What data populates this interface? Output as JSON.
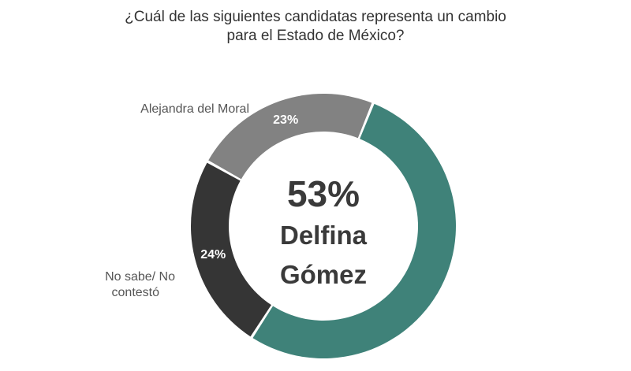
{
  "chart_data": {
    "type": "pie",
    "variant": "donut",
    "title_lines": [
      "¿Cuál de las siguientes candidatas representa un cambio",
      "para el Estado de México?"
    ],
    "categories": [
      "Delfina Gómez",
      "No sabe/ No contestó",
      "Alejandra del Moral"
    ],
    "values": [
      53,
      24,
      23
    ],
    "value_labels": [
      "53%",
      "24%",
      "23%"
    ],
    "colors": [
      "#3f8279",
      "#353535",
      "#828282"
    ],
    "outside_labels": {
      "alejandra": "Alejandra del Moral",
      "nosabe_line1": "No sabe/ No",
      "nosabe_line2": "contestó"
    },
    "center": {
      "value": "53%",
      "name_line1": "Delfina",
      "name_line2": "Gómez"
    }
  }
}
